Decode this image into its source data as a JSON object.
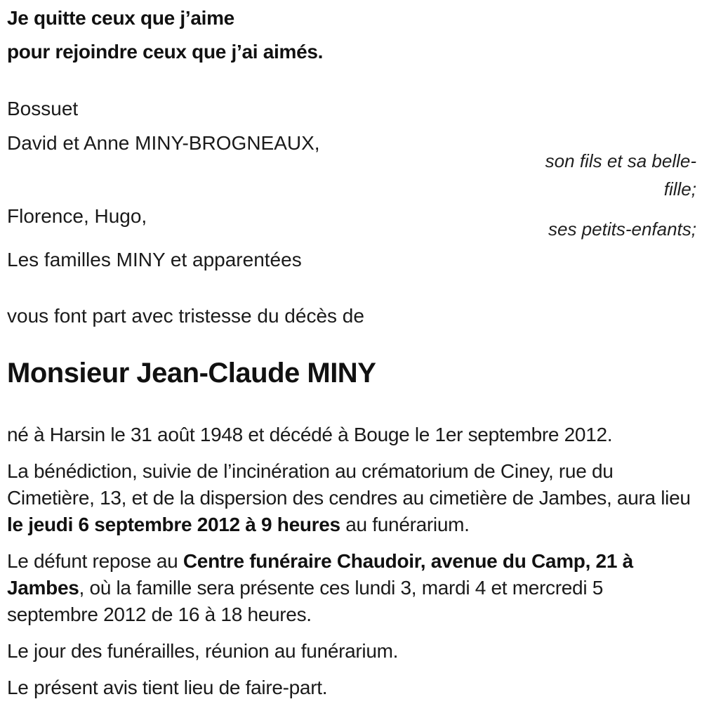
{
  "document": {
    "epitaph": {
      "line1": "Je quitte ceux que j’aime",
      "line2": "pour rejoindre ceux que j’ai aimés."
    },
    "attribution": "Bossuet",
    "family": [
      {
        "names": "David et Anne MINY-BROGNEAUX,",
        "role": "son fils et sa belle-fille;"
      },
      {
        "names": "Florence, Hugo,",
        "role": "ses petits-enfants;"
      },
      {
        "names": "Les familles MINY et apparentées",
        "role": ""
      }
    ],
    "intro": "vous font part avec tristesse du décès de",
    "deceased_name": "Monsieur Jean-Claude MINY",
    "paragraphs": {
      "birth_death": "né à Harsin le 31 août 1948 et décédé à Bouge le 1er septembre 2012.",
      "ceremony": {
        "pre": "La bénédiction, suivie de l’incinération au crématorium de Ciney, rue du Cimetière, 13, et de la dispersion des cendres au cimetière de Jambes, aura lieu ",
        "bold": "le jeudi 6 septembre 2012 à 9 heures",
        "post": " au funérarium."
      },
      "repose": {
        "pre": "Le défunt repose au ",
        "bold": "Centre funéraire Chaudoir, avenue du Camp, 21 à Jambes",
        "post": ", où la famille sera présente ces lundi 3, mardi 4 et mercredi 5 septembre 2012 de 16 à 18 heures."
      },
      "funeral_day": "Le jour des funérailles, réunion au funérarium.",
      "notice": "Le présent avis tient lieu de faire-part."
    },
    "colors": {
      "text": "#1a1a1a",
      "background": "#ffffff"
    }
  }
}
